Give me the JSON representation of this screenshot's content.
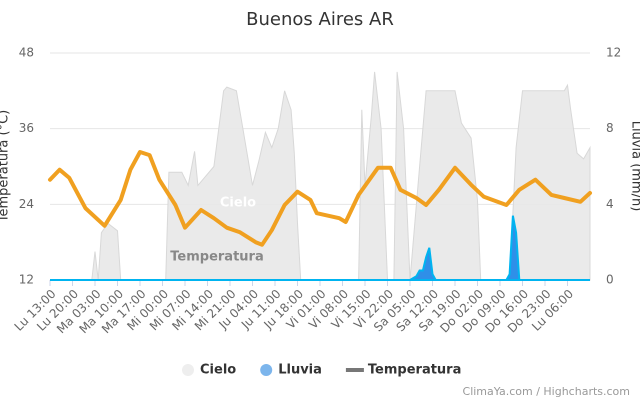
{
  "chart_data": {
    "type": "line",
    "title": "Buenos Aires AR",
    "y_label": "Temperatura (°C)",
    "y2_label": "Lluvia (mm/h)",
    "ylim": [
      12,
      48
    ],
    "yticks": [
      12,
      24,
      36,
      48
    ],
    "y2lim": [
      0,
      12
    ],
    "y2ticks": [
      0,
      4,
      8,
      12
    ],
    "xlim": [
      0,
      168
    ],
    "xticks": [
      {
        "value": 0,
        "label": "Lu 13:00"
      },
      {
        "value": 7,
        "label": "Lu 20:00"
      },
      {
        "value": 14,
        "label": "Ma 03:00"
      },
      {
        "value": 21,
        "label": "Ma 10:00"
      },
      {
        "value": 28,
        "label": "Ma 17:00"
      },
      {
        "value": 35,
        "label": "Mi 00:00"
      },
      {
        "value": 42,
        "label": "Mi 07:00"
      },
      {
        "value": 49,
        "label": "Mi 14:00"
      },
      {
        "value": 56,
        "label": "Mi 21:00"
      },
      {
        "value": 63,
        "label": "Ju 04:00"
      },
      {
        "value": 70,
        "label": "Ju 11:00"
      },
      {
        "value": 77,
        "label": "Ju 18:00"
      },
      {
        "value": 84,
        "label": "Vi 01:00"
      },
      {
        "value": 91,
        "label": "Vi 08:00"
      },
      {
        "value": 98,
        "label": "Vi 15:00"
      },
      {
        "value": 105,
        "label": "Vi 22:00"
      },
      {
        "value": 112,
        "label": "Sa 05:00"
      },
      {
        "value": 119,
        "label": "Sa 12:00"
      },
      {
        "value": 126,
        "label": "Sa 19:00"
      },
      {
        "value": 133,
        "label": "Do 02:00"
      },
      {
        "value": 140,
        "label": "Do 09:00"
      },
      {
        "value": 147,
        "label": "Do 16:00"
      },
      {
        "value": 154,
        "label": "Do 23:00"
      },
      {
        "value": 161,
        "label": "Lu 06:00"
      }
    ],
    "grid": true,
    "legend": "bottom",
    "series": [
      {
        "name": "Cielo",
        "kind": "area",
        "axis": "y2",
        "color": "#e8e8e8",
        "legend_color": "#eeeeee",
        "x": [
          0,
          13,
          14,
          15,
          16,
          18,
          21,
          22,
          36,
          37,
          41,
          43,
          45,
          46,
          51,
          54,
          55,
          58,
          60,
          63,
          65,
          67,
          69,
          71,
          73,
          75,
          76,
          77,
          78,
          96,
          97,
          98,
          100,
          101,
          103,
          105,
          107,
          108,
          110,
          112,
          115,
          117,
          126,
          128,
          131,
          133,
          134,
          143,
          145,
          147,
          160,
          161,
          162,
          164,
          166,
          168
        ],
        "values": [
          0,
          0,
          1.5,
          0,
          2.5,
          3,
          2.6,
          0,
          0,
          5.7,
          5.7,
          5,
          6.8,
          5,
          6,
          10,
          10.2,
          10,
          8,
          5,
          6.3,
          7.8,
          7,
          8,
          10,
          9,
          6.7,
          3,
          0,
          0,
          9,
          5,
          8.7,
          11,
          8,
          0,
          0,
          11,
          8,
          0,
          6,
          10,
          10,
          8.3,
          7.5,
          4.2,
          0,
          0,
          7,
          10,
          10,
          10.3,
          9,
          6.7,
          6.4,
          7
        ]
      },
      {
        "name": "Lluvia",
        "kind": "area",
        "axis": "y2",
        "color": "#2f8fe8",
        "legend_color": "#7cb5ec",
        "x": [
          0,
          112,
          114,
          115,
          116,
          117,
          118,
          119,
          120,
          142,
          143,
          144,
          145,
          146,
          168
        ],
        "values": [
          0,
          0,
          0.2,
          0.5,
          0.5,
          1.2,
          1.7,
          0.3,
          0,
          0,
          0.3,
          3.4,
          2.5,
          0,
          0
        ]
      },
      {
        "name": "Temperatura",
        "kind": "line",
        "color": "#f0a020",
        "legend_color": "#777777",
        "x": [
          0,
          3,
          6,
          11,
          17,
          22,
          25,
          28,
          31,
          34,
          39,
          42,
          47,
          51,
          55,
          59,
          64,
          66,
          69,
          73,
          77,
          81,
          83,
          90,
          92,
          96,
          102,
          106,
          109,
          114,
          117,
          121,
          126,
          131,
          135,
          142,
          146,
          151,
          156,
          160,
          165,
          168
        ],
        "values": [
          27.9,
          29.5,
          28.2,
          23.4,
          20.6,
          24.7,
          29.5,
          32.3,
          31.8,
          27.9,
          23.9,
          20.3,
          23.1,
          21.8,
          20.3,
          19.6,
          18,
          17.6,
          19.9,
          23.9,
          26,
          24.7,
          22.6,
          21.8,
          21.2,
          25.5,
          29.8,
          29.8,
          26.3,
          25,
          23.9,
          26.3,
          29.8,
          27.1,
          25.2,
          23.9,
          26.3,
          27.9,
          25.5,
          25,
          24.4,
          25.8
        ]
      }
    ],
    "annotations": [
      "Cielo",
      "Temperatura"
    ],
    "credits": "ClimaYa.com / Highcharts.com"
  }
}
